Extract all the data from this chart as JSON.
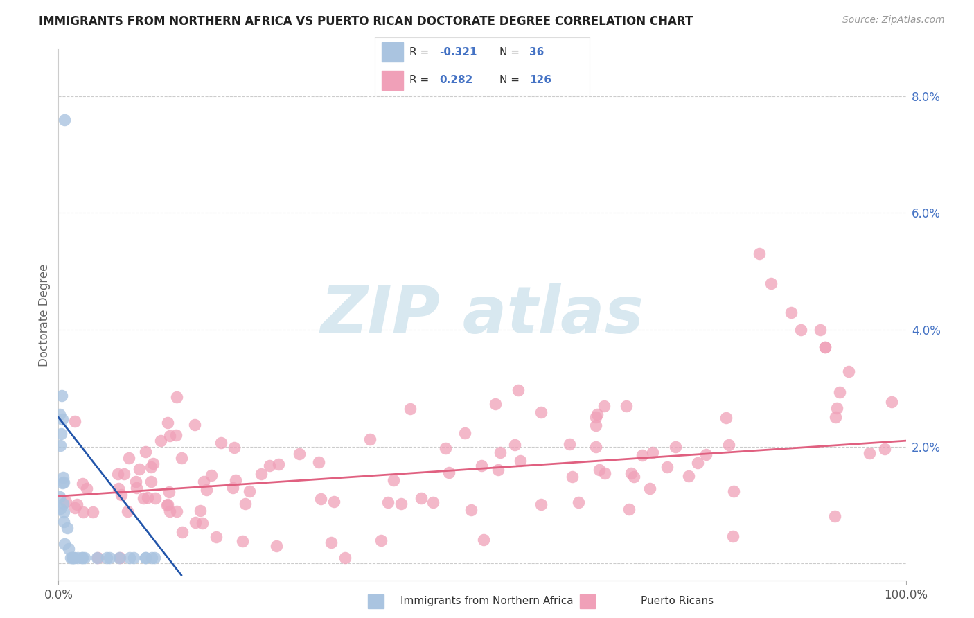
{
  "title": "IMMIGRANTS FROM NORTHERN AFRICA VS PUERTO RICAN DOCTORATE DEGREE CORRELATION CHART",
  "source": "Source: ZipAtlas.com",
  "ylabel": "Doctorate Degree",
  "y_ticks": [
    0.0,
    0.02,
    0.04,
    0.06,
    0.08
  ],
  "x_range": [
    0.0,
    1.0
  ],
  "y_range": [
    -0.003,
    0.088
  ],
  "color_blue": "#aac4e0",
  "color_blue_line": "#2255aa",
  "color_pink": "#f0a0b8",
  "color_pink_line": "#e06080",
  "watermark_color": "#d8e8f0",
  "title_fontsize": 12,
  "source_fontsize": 10,
  "tick_label_fontsize": 12,
  "ylabel_fontsize": 12,
  "background": "#ffffff",
  "grid_color": "#cccccc",
  "blue_line_start_x": 0.0,
  "blue_line_start_y": 0.025,
  "blue_line_end_x": 0.145,
  "blue_line_end_y": -0.002,
  "pink_line_start_x": 0.0,
  "pink_line_start_y": 0.0115,
  "pink_line_end_x": 1.0,
  "pink_line_end_y": 0.021
}
